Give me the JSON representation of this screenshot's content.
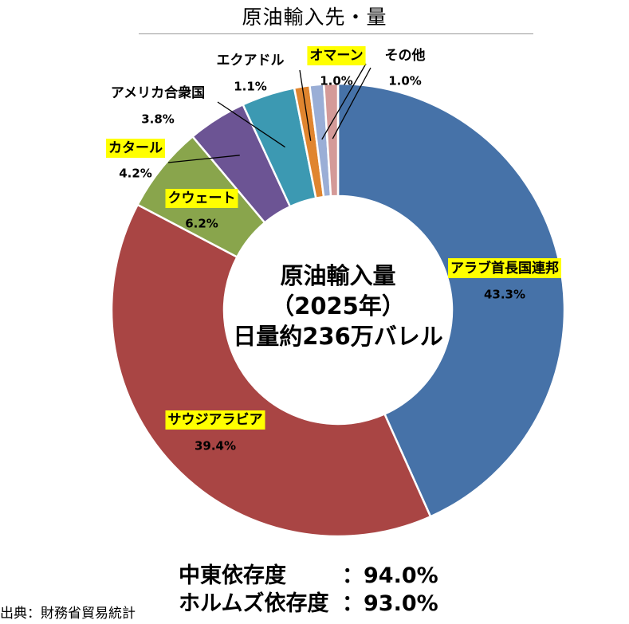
{
  "title": "原油輸入先・量",
  "chart_data": {
    "type": "pie",
    "categories": [
      "アラブ首長国連邦",
      "サウジアラビア",
      "クウェート",
      "カタール",
      "アメリカ合衆国",
      "エクアドル",
      "オマーン",
      "その他"
    ],
    "values": [
      43.3,
      39.4,
      6.2,
      4.2,
      3.8,
      1.1,
      1.0,
      1.0
    ],
    "value_labels": [
      "43.3%",
      "39.4%",
      "6.2%",
      "4.2%",
      "3.8%",
      "1.1%",
      "1.0%",
      "1.0%"
    ],
    "colors": [
      "#4672a8",
      "#a94544",
      "#89a54c",
      "#6c5494",
      "#3c99b2",
      "#e0852f",
      "#9aaed6",
      "#d49a98"
    ],
    "highlighted": [
      "アラブ首長国連邦",
      "サウジアラビア",
      "クウェート",
      "カタール",
      "オマーン"
    ],
    "highlight_color": "#ffff00",
    "center_text": [
      "原油輸入量",
      "（2025年）",
      "日量約236万バレル"
    ]
  },
  "stats": [
    {
      "label": "中東依存度",
      "value": "：94.0%"
    },
    {
      "label": "ホルムズ依存度",
      "value": "：93.0%"
    }
  ],
  "source": "出典：財務省貿易統計"
}
